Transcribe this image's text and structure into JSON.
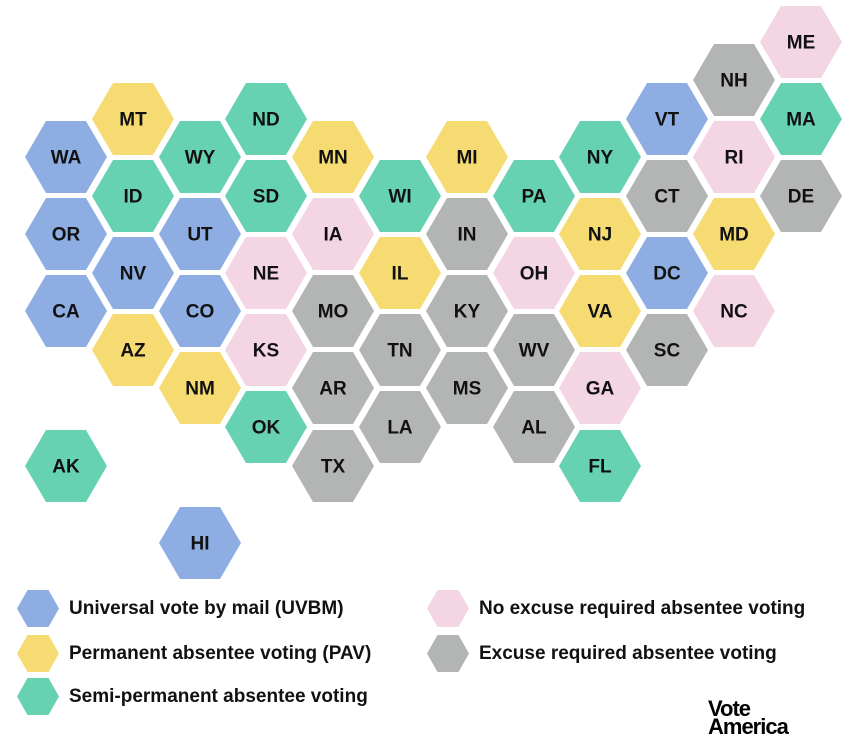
{
  "colors": {
    "uvbm": "#8eaee3",
    "pav": "#f6da72",
    "semi": "#67d2b1",
    "noexcuse": "#f3d5e4",
    "excuse": "#b3b5b5"
  },
  "states": [
    {
      "code": "WA",
      "cat": "uvbm"
    },
    {
      "code": "OR",
      "cat": "uvbm"
    },
    {
      "code": "CA",
      "cat": "uvbm"
    },
    {
      "code": "AK",
      "cat": "semi"
    },
    {
      "code": "MT",
      "cat": "pav"
    },
    {
      "code": "ID",
      "cat": "semi"
    },
    {
      "code": "NV",
      "cat": "uvbm"
    },
    {
      "code": "AZ",
      "cat": "pav"
    },
    {
      "code": "WY",
      "cat": "semi"
    },
    {
      "code": "UT",
      "cat": "uvbm"
    },
    {
      "code": "CO",
      "cat": "uvbm"
    },
    {
      "code": "NM",
      "cat": "pav"
    },
    {
      "code": "HI",
      "cat": "uvbm"
    },
    {
      "code": "ND",
      "cat": "semi"
    },
    {
      "code": "SD",
      "cat": "semi"
    },
    {
      "code": "NE",
      "cat": "noexcuse"
    },
    {
      "code": "KS",
      "cat": "noexcuse"
    },
    {
      "code": "OK",
      "cat": "semi"
    },
    {
      "code": "MN",
      "cat": "pav"
    },
    {
      "code": "IA",
      "cat": "noexcuse"
    },
    {
      "code": "MO",
      "cat": "excuse"
    },
    {
      "code": "AR",
      "cat": "excuse"
    },
    {
      "code": "TX",
      "cat": "excuse"
    },
    {
      "code": "WI",
      "cat": "semi"
    },
    {
      "code": "IL",
      "cat": "pav"
    },
    {
      "code": "TN",
      "cat": "excuse"
    },
    {
      "code": "LA",
      "cat": "excuse"
    },
    {
      "code": "MI",
      "cat": "pav"
    },
    {
      "code": "IN",
      "cat": "excuse"
    },
    {
      "code": "KY",
      "cat": "excuse"
    },
    {
      "code": "MS",
      "cat": "excuse"
    },
    {
      "code": "PA",
      "cat": "semi"
    },
    {
      "code": "OH",
      "cat": "noexcuse"
    },
    {
      "code": "WV",
      "cat": "excuse"
    },
    {
      "code": "AL",
      "cat": "excuse"
    },
    {
      "code": "NY",
      "cat": "semi"
    },
    {
      "code": "NJ",
      "cat": "pav"
    },
    {
      "code": "VA",
      "cat": "pav"
    },
    {
      "code": "GA",
      "cat": "noexcuse"
    },
    {
      "code": "FL",
      "cat": "semi"
    },
    {
      "code": "VT",
      "cat": "uvbm"
    },
    {
      "code": "CT",
      "cat": "excuse"
    },
    {
      "code": "DC",
      "cat": "uvbm"
    },
    {
      "code": "SC",
      "cat": "excuse"
    },
    {
      "code": "NH",
      "cat": "excuse"
    },
    {
      "code": "RI",
      "cat": "noexcuse"
    },
    {
      "code": "MD",
      "cat": "pav"
    },
    {
      "code": "NC",
      "cat": "noexcuse"
    },
    {
      "code": "ME",
      "cat": "noexcuse"
    },
    {
      "code": "MA",
      "cat": "semi"
    },
    {
      "code": "DE",
      "cat": "excuse"
    }
  ],
  "legend": {
    "uvbm": "Universal vote by mail (UVBM)",
    "pav": "Permanent absentee voting (PAV)",
    "semi": "Semi-permanent absentee voting",
    "noexcuse": "No excuse required absentee voting",
    "excuse": "Excuse required absentee voting"
  },
  "logo": {
    "line1": "Vote",
    "line2": "America"
  }
}
